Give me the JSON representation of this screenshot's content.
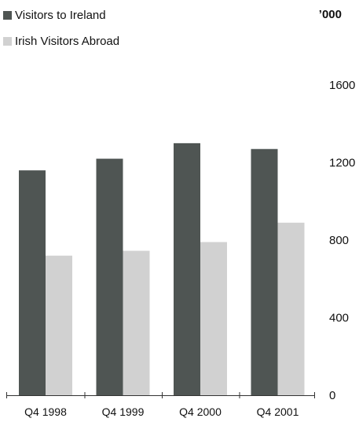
{
  "chart_data": {
    "type": "bar",
    "categories": [
      "Q4 1998",
      "Q4 1999",
      "Q4 2000",
      "Q4 2001"
    ],
    "series": [
      {
        "name": "Visitors to Ireland",
        "values": [
          1160,
          1220,
          1300,
          1270
        ],
        "color": "#4f5553"
      },
      {
        "name": "Irish Visitors Abroad",
        "values": [
          720,
          745,
          790,
          890
        ],
        "color": "#d1d1d1"
      }
    ],
    "unit_label": "’000",
    "yticks": [
      "0",
      "400",
      "800",
      "1200",
      "1600"
    ],
    "ylim": [
      0,
      1600
    ],
    "y_axis_position": "right",
    "grid": false,
    "legend_position": "top-left"
  }
}
